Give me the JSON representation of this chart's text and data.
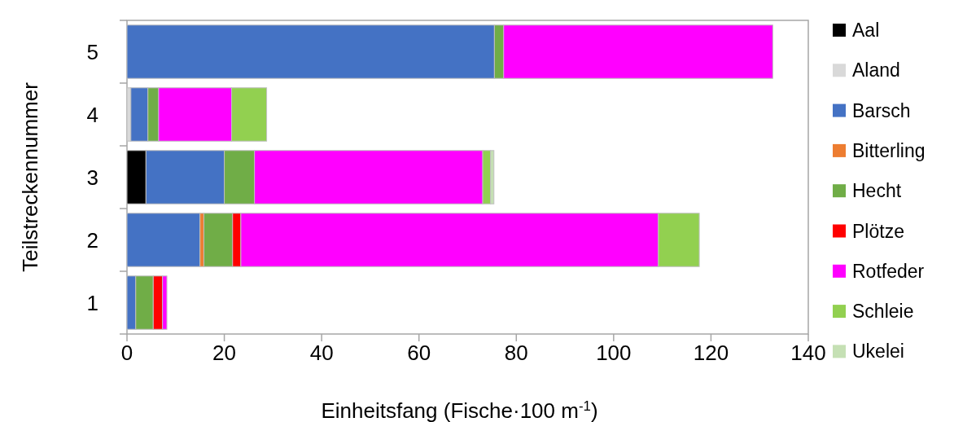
{
  "chart_data": {
    "type": "bar",
    "orientation": "horizontal",
    "stacked": true,
    "xlabel": "Einheitsfang (Fische·100 m$^{-1}$)",
    "ylabel": "Teilstreckennummer",
    "categories": [
      "5",
      "4",
      "3",
      "2",
      "1"
    ],
    "series": [
      {
        "name": "Aal",
        "color": "#000000",
        "values": [
          null,
          null,
          3.9,
          null,
          null
        ]
      },
      {
        "name": "Aland",
        "color": "#d9d9d9",
        "values": [
          null,
          0.8,
          null,
          null,
          null
        ]
      },
      {
        "name": "Barsch",
        "color": "#4472c4",
        "values": [
          75.5,
          3.5,
          16.1,
          15.0,
          1.8
        ]
      },
      {
        "name": "Bitterling",
        "color": "#ed7d31",
        "values": [
          null,
          null,
          null,
          0.8,
          null
        ]
      },
      {
        "name": "Hecht",
        "color": "#70ad47",
        "values": [
          1.9,
          2.2,
          6.2,
          5.9,
          3.6
        ]
      },
      {
        "name": "Plötze",
        "color": "#ff0000",
        "values": [
          null,
          null,
          null,
          1.7,
          1.9
        ]
      },
      {
        "name": "Rotfeder",
        "color": "#ff00ff",
        "values": [
          55.3,
          15.0,
          46.9,
          85.8,
          0.9
        ]
      },
      {
        "name": "Schleie",
        "color": "#92d050",
        "values": [
          null,
          7.2,
          1.6,
          8.4,
          null
        ]
      },
      {
        "name": "Ukelei",
        "color": "#c5e0b4",
        "values": [
          null,
          null,
          0.7,
          null,
          null
        ]
      }
    ],
    "xlim": [
      0,
      140
    ],
    "xticks": [
      0,
      20,
      40,
      60,
      80,
      100,
      120,
      140
    ],
    "grid": false,
    "legend": "right"
  }
}
